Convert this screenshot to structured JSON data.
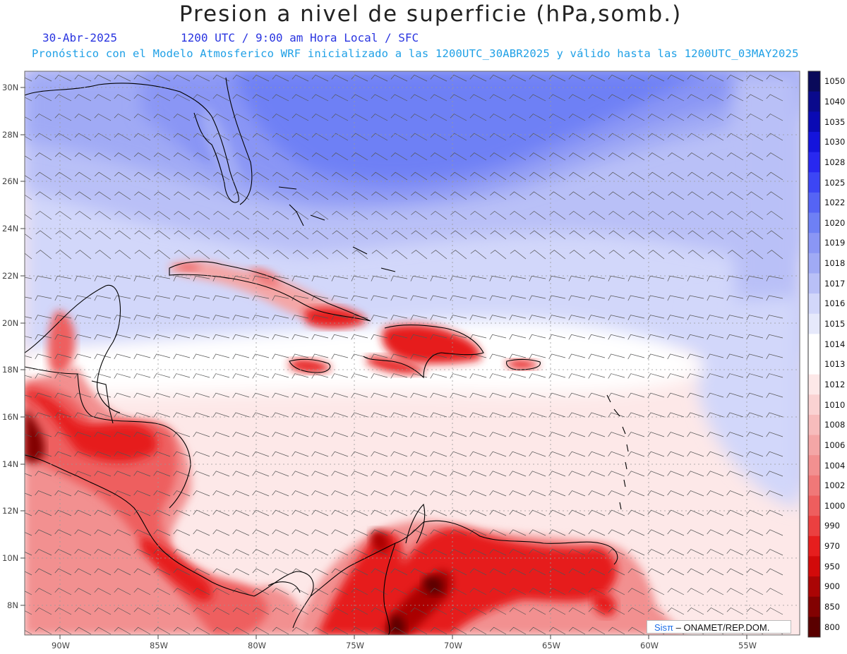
{
  "header": {
    "title": "Presion a nivel de superficie (hPa,somb.)",
    "date": "30-Abr-2025",
    "time_info": "1200 UTC / 9:00 am Hora Local / SFC",
    "model_info": "Pronóstico con el Modelo Atmosferico WRF inicializado a las 1200UTC_30ABR2025 y válido hasta las  1200UTC_03MAY2025"
  },
  "map": {
    "lat_labels": [
      "30N",
      "28N",
      "26N",
      "24N",
      "22N",
      "20N",
      "18N",
      "16N",
      "14N",
      "12N",
      "10N",
      "8N"
    ],
    "lon_labels": [
      "90W",
      "85W",
      "80W",
      "75W",
      "70W",
      "65W",
      "60W",
      "55W"
    ]
  },
  "colorbar": {
    "levels": [
      "1050",
      "1040",
      "1035",
      "1030",
      "1028",
      "1025",
      "1022",
      "1020",
      "1019",
      "1018",
      "1017",
      "1016",
      "1015",
      "1014",
      "1013",
      "1012",
      "1010",
      "1008",
      "1006",
      "1004",
      "1002",
      "1000",
      "990",
      "970",
      "950",
      "900",
      "850",
      "800"
    ],
    "colors": [
      "#0a0a5a",
      "#0a0a8c",
      "#0a0ab4",
      "#1414dc",
      "#2828f0",
      "#3c46f5",
      "#5564f5",
      "#6e80f5",
      "#8a96f5",
      "#a0aaf5",
      "#b9c0f7",
      "#d2d7fa",
      "#e6e9fb",
      "#ffffff",
      "#ffffff",
      "#fde8e8",
      "#fad2d2",
      "#f7bcbc",
      "#f4a6a6",
      "#f29090",
      "#f07878",
      "#ee5e5e",
      "#eb4040",
      "#e61e1e",
      "#d20a0a",
      "#aa0505",
      "#820202",
      "#5a0000"
    ]
  },
  "credit": {
    "brand": "Sis",
    "pi": "π",
    "text": " – ONAMET/REP.DOM."
  }
}
